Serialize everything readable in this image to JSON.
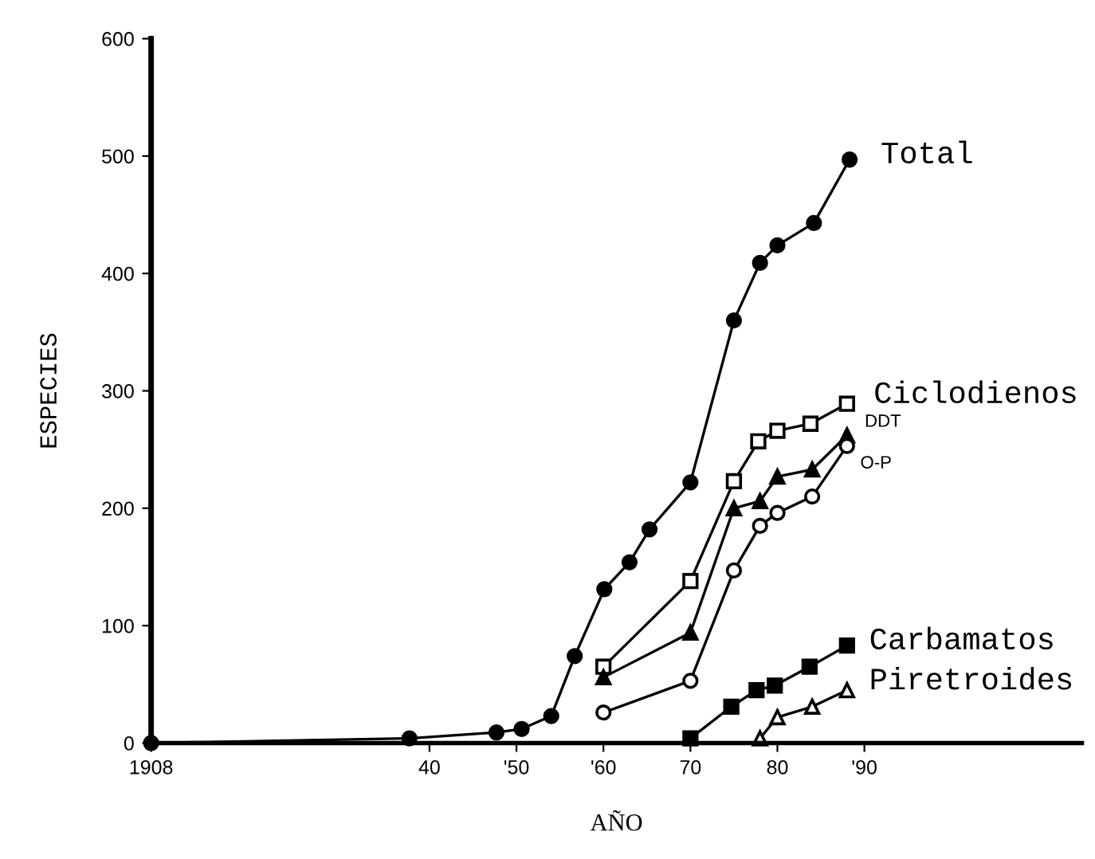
{
  "chart_data": {
    "type": "line",
    "xlabel": "AÑO",
    "ylabel": "ESPECIES",
    "xlim": [
      1908,
      2015
    ],
    "ylim": [
      0,
      600
    ],
    "xticks": [
      1908,
      {
        "value": 1940,
        "label": "40"
      },
      {
        "value": 1950,
        "label": "'50"
      },
      {
        "value": 1960,
        "label": "'60"
      },
      {
        "value": 1970,
        "label": "70"
      },
      {
        "value": 1980,
        "label": "80"
      },
      {
        "value": 1990,
        "label": "'90"
      }
    ],
    "yticks": [
      0,
      100,
      200,
      300,
      400,
      500,
      600
    ],
    "grid": false,
    "legend": false,
    "series": [
      {
        "name": "Total",
        "color": "#000000",
        "marker": "circle",
        "x": [
          1908,
          1937.7,
          1947.7,
          1950.6,
          1954,
          1956.7,
          1960.1,
          1963,
          1965.3,
          1970,
          1975,
          1978,
          1980,
          1984.2,
          1988.3
        ],
        "values": [
          0,
          4,
          9,
          12,
          23,
          74,
          131,
          154,
          182,
          222,
          360,
          409,
          424,
          443,
          497
        ]
      },
      {
        "name": "Ciclodienos",
        "color": "#000000",
        "marker": "square",
        "x": [
          1960,
          1970,
          1975,
          1977.8,
          1980,
          1983.8,
          1988
        ],
        "values": [
          65,
          138,
          223,
          257,
          266,
          272,
          289
        ]
      },
      {
        "name": "DDT",
        "color": "#000000",
        "marker": "triangle",
        "x": [
          1960,
          1970,
          1975,
          1978,
          1980,
          1984,
          1988
        ],
        "values": [
          56,
          94,
          200,
          206,
          227,
          233,
          262
        ]
      },
      {
        "name": "O-P",
        "color": "#000000",
        "marker": "circle",
        "x": [
          1960,
          1970,
          1975,
          1978,
          1980,
          1984,
          1988
        ],
        "values": [
          26,
          53,
          147,
          185,
          196,
          210,
          253
        ]
      },
      {
        "name": "Carbamatos",
        "color": "#000000",
        "marker": "square",
        "x": [
          1970,
          1974.7,
          1977.6,
          1979.7,
          1983.7,
          1988
        ],
        "values": [
          4,
          31,
          45,
          49,
          65,
          83
        ]
      },
      {
        "name": "Piretroides",
        "color": "#000000",
        "marker": "triangle",
        "x": [
          1978,
          1980,
          1984,
          1988
        ],
        "values": [
          4,
          22,
          31,
          45
        ]
      }
    ]
  }
}
